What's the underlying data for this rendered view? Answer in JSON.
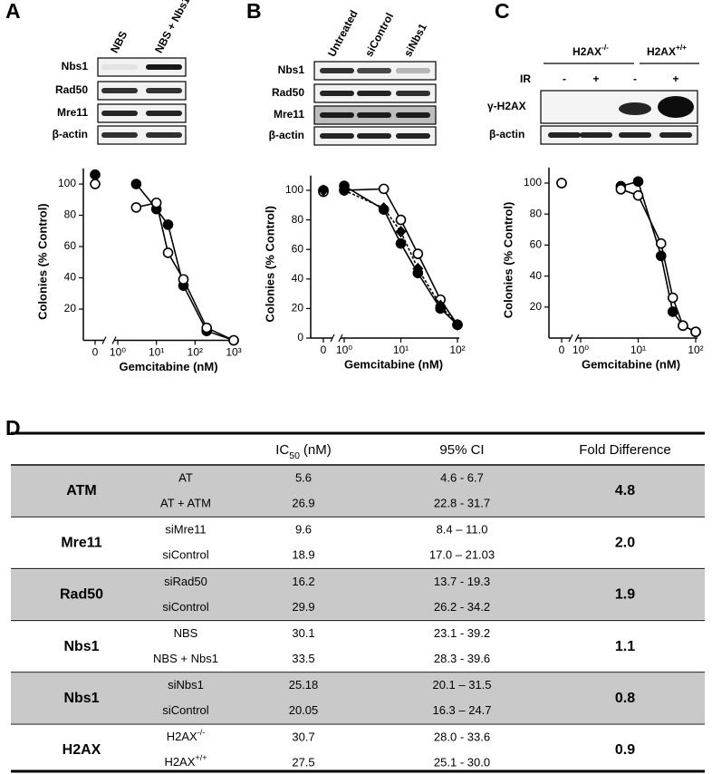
{
  "figure": {
    "panel_labels": [
      "A",
      "B",
      "C",
      "D"
    ],
    "blots": [
      {
        "columns": [
          "NBS",
          "NBS + Nbs1"
        ],
        "rows": [
          "Nbs1",
          "Rad50",
          "Mre11",
          "β-actin"
        ]
      },
      {
        "columns": [
          "Untreated",
          "siControl",
          "siNbs1"
        ],
        "rows": [
          "Nbs1",
          "Rad50",
          "Mre11",
          "β-actin"
        ]
      },
      {
        "groups": [
          {
            "base": "H2AX",
            "sup": "-/-"
          },
          {
            "base": "H2AX",
            "sup": "+/+"
          }
        ],
        "ir_label": "IR",
        "ir": [
          "-",
          "+",
          "-",
          "+"
        ],
        "rows": [
          "γ-H2AX",
          "β-actin"
        ]
      }
    ]
  },
  "chart_data": [
    {
      "type": "line",
      "xscale": "log",
      "x": [
        0,
        3,
        10,
        20,
        50,
        200,
        1000
      ],
      "series": [
        {
          "color": "#000000",
          "marker": "circle",
          "filled": true,
          "dashed": false,
          "values": [
            106,
            100,
            84,
            74,
            35,
            6,
            0
          ]
        },
        {
          "color": "#000000",
          "marker": "circle",
          "filled": false,
          "dashed": false,
          "values": [
            100,
            85,
            88,
            56,
            39,
            8,
            0
          ]
        }
      ],
      "xlabel": "Gemcitabine (nM)",
      "ylabel": "Colonies (% Control)",
      "xlim": [
        1,
        1000
      ],
      "ylim": [
        0,
        110
      ],
      "xticks": [
        0,
        {
          "value": 1,
          "label": "10⁰"
        },
        {
          "value": 10,
          "label": "10¹"
        },
        {
          "value": 100,
          "label": "10²"
        },
        {
          "value": 1000,
          "label": "10³"
        }
      ],
      "yticks": [
        20,
        40,
        60,
        80,
        100
      ]
    },
    {
      "type": "line",
      "xscale": "log",
      "x": [
        0,
        1,
        5,
        10,
        20,
        50,
        100
      ],
      "series": [
        {
          "color": "#000000",
          "marker": "circle",
          "filled": true,
          "dashed": false,
          "values": [
            100,
            103,
            87,
            64,
            44,
            20,
            9
          ]
        },
        {
          "color": "#000000",
          "marker": "circle",
          "filled": false,
          "dashed": false,
          "values": [
            99,
            100,
            101,
            80,
            57,
            26,
            9
          ]
        },
        {
          "color": "#000000",
          "marker": "diamond",
          "filled": true,
          "dashed": true,
          "values": [
            100,
            100,
            88,
            72,
            47,
            22,
            9
          ]
        }
      ],
      "xlabel": "Gemcitabine (nM)",
      "ylabel": "Colonies (% Control)",
      "xlim": [
        1,
        100
      ],
      "ylim": [
        0,
        110
      ],
      "xticks": [
        0,
        {
          "value": 1,
          "label": "10⁰"
        },
        {
          "value": 10,
          "label": "10¹"
        },
        {
          "value": 100,
          "label": "10²"
        }
      ],
      "yticks": [
        0,
        20,
        40,
        60,
        80,
        100
      ]
    },
    {
      "type": "line",
      "xscale": "log",
      "x": [
        0,
        5,
        10,
        25,
        40,
        60,
        100
      ],
      "series": [
        {
          "color": "#000000",
          "marker": "circle",
          "filled": true,
          "dashed": false,
          "values": [
            100,
            98,
            101,
            53,
            17,
            8,
            4
          ]
        },
        {
          "color": "#000000",
          "marker": "circle",
          "filled": false,
          "dashed": false,
          "values": [
            100,
            96,
            92,
            61,
            26,
            8,
            4
          ]
        }
      ],
      "xlabel": "Gemcitabine (nM)",
      "ylabel": "Colonies (% Control)",
      "xlim": [
        1,
        100
      ],
      "ylim": [
        0,
        110
      ],
      "xticks": [
        0,
        {
          "value": 1,
          "label": "10⁰"
        },
        {
          "value": 10,
          "label": "10¹"
        },
        {
          "value": 100,
          "label": "10²"
        }
      ],
      "yticks": [
        20,
        40,
        60,
        80,
        100
      ]
    }
  ],
  "table": {
    "header": {
      "ic50": {
        "base": "IC",
        "sub": "50",
        "unit": "(nM)"
      },
      "ci": "95% CI",
      "fold": "Fold Difference"
    },
    "groups": [
      {
        "name": "ATM",
        "fold": "4.8",
        "shaded": true,
        "rows": [
          {
            "label": "AT",
            "ic50": "5.6",
            "ci": "4.6 - 6.7"
          },
          {
            "label": "AT + ATM",
            "ic50": "26.9",
            "ci": "22.8 - 31.7"
          }
        ]
      },
      {
        "name": "Mre11",
        "fold": "2.0",
        "shaded": false,
        "rows": [
          {
            "label": "siMre11",
            "ic50": "9.6",
            "ci": "8.4 – 11.0"
          },
          {
            "label": "siControl",
            "ic50": "18.9",
            "ci": "17.0 – 21.03"
          }
        ]
      },
      {
        "name": "Rad50",
        "fold": "1.9",
        "shaded": true,
        "rows": [
          {
            "label": "siRad50",
            "ic50": "16.2",
            "ci": "13.7 - 19.3"
          },
          {
            "label": "siControl",
            "ic50": "29.9",
            "ci": "26.2 - 34.2"
          }
        ]
      },
      {
        "name": "Nbs1",
        "fold": "1.1",
        "shaded": false,
        "rows": [
          {
            "label": "NBS",
            "ic50": "30.1",
            "ci": "23.1 - 39.2"
          },
          {
            "label": "NBS + Nbs1",
            "ic50": "33.5",
            "ci": "28.3 - 39.6"
          }
        ]
      },
      {
        "name": "Nbs1",
        "fold": "0.8",
        "shaded": true,
        "rows": [
          {
            "label": "siNbs1",
            "ic50": "25.18",
            "ci": "20.1 – 31.5"
          },
          {
            "label": "siControl",
            "ic50": "20.05",
            "ci": "16.3 – 24.7"
          }
        ]
      },
      {
        "name": "H2AX",
        "fold": "0.9",
        "shaded": false,
        "rows": [
          {
            "label": {
              "base": "H2AX",
              "sup": "-/-"
            },
            "ic50": "30.7",
            "ci": "28.0 - 33.6"
          },
          {
            "label": {
              "base": "H2AX",
              "sup": "+/+"
            },
            "ic50": "27.5",
            "ci": "25.1 - 30.0"
          }
        ]
      }
    ]
  }
}
